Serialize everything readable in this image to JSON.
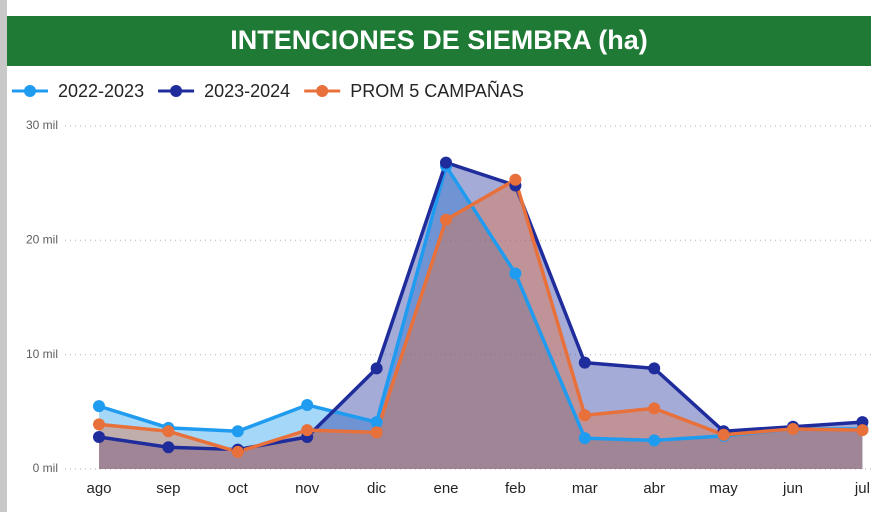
{
  "chart_data": {
    "type": "area",
    "title": "INTENCIONES DE SIEMBRA (ha)",
    "categories": [
      "ago",
      "sep",
      "oct",
      "nov",
      "dic",
      "ene",
      "feb",
      "mar",
      "abr",
      "may",
      "jun",
      "jul"
    ],
    "series": [
      {
        "name": "2022-2023",
        "color": "#1f9bf0",
        "values": [
          5500,
          3600,
          3300,
          5600,
          4100,
          26500,
          17100,
          2700,
          2500,
          2900,
          3500,
          3500
        ]
      },
      {
        "name": "2023-2024",
        "color": "#1f2c9c",
        "values": [
          2800,
          1900,
          1700,
          2800,
          8800,
          26800,
          24800,
          9300,
          8800,
          3300,
          3700,
          4100
        ]
      },
      {
        "name": "PROM 5 CAMPAÑAS",
        "color": "#e8703a",
        "values": [
          3900,
          3300,
          1500,
          3400,
          3200,
          21800,
          25300,
          4700,
          5300,
          3000,
          3500,
          3400
        ]
      }
    ],
    "ylim": [
      0,
      30000
    ],
    "yticks": [
      {
        "value": 0,
        "label": "0 mil"
      },
      {
        "value": 10000,
        "label": "10 mil"
      },
      {
        "value": 20000,
        "label": "20 mil"
      },
      {
        "value": 30000,
        "label": "30 mil"
      }
    ],
    "grid": true,
    "legend": "top"
  }
}
